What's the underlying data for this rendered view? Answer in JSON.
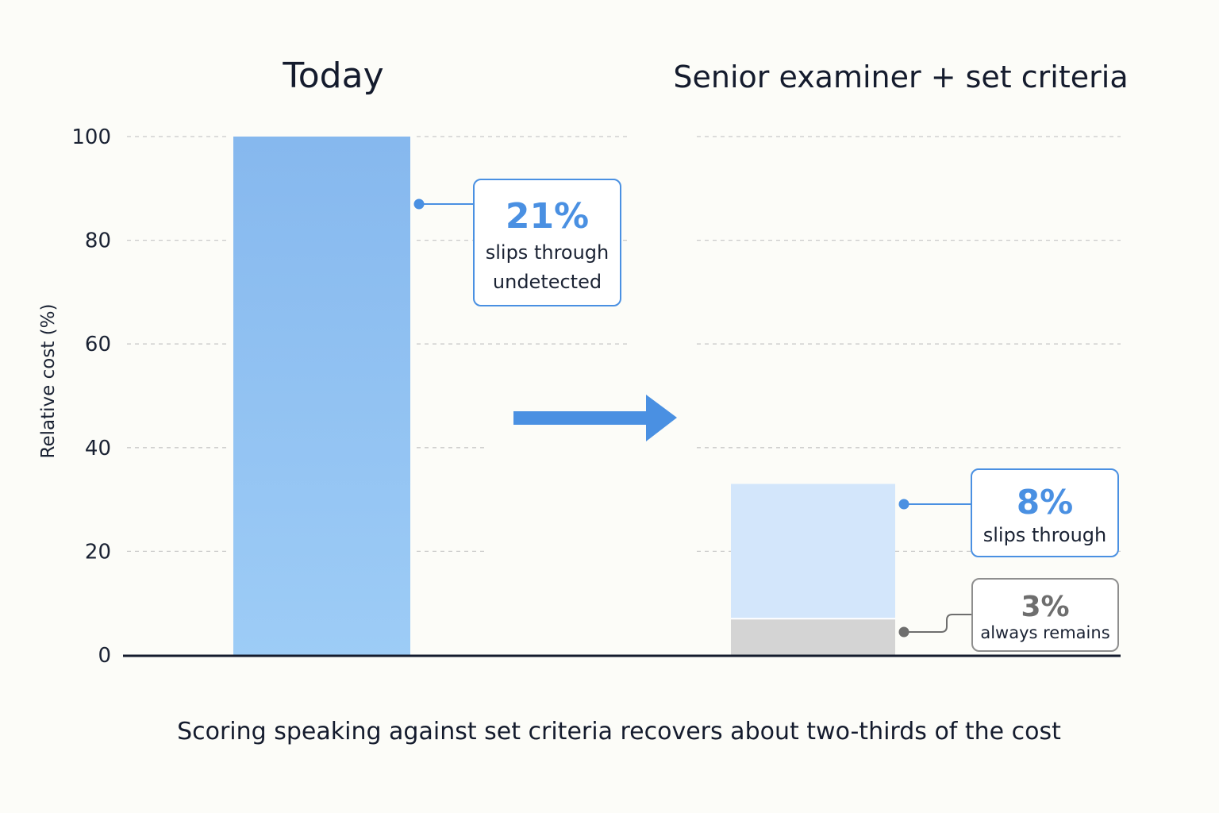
{
  "chart_data": {
    "type": "bar",
    "ylabel": "Relative cost (%)",
    "ylim": [
      0,
      100
    ],
    "yticks": [
      0,
      20,
      40,
      60,
      80,
      100
    ],
    "grid": true,
    "caption": "Scoring speaking against set criteria recovers about two-thirds of the cost",
    "panels": [
      {
        "title": "Today",
        "segments": [
          {
            "value": 100
          }
        ]
      },
      {
        "title": "Senior examiner + set criteria",
        "segments": [
          {
            "value": 7
          },
          {
            "value": 26
          }
        ]
      }
    ],
    "callouts": [
      {
        "pct": "21%",
        "lines": [
          "slips through",
          "undetected"
        ],
        "color": "#4a90e2",
        "anchor_value": 87
      },
      {
        "pct": "8%",
        "lines": [
          "slips through"
        ],
        "color": "#4a90e2",
        "anchor_value": 29
      },
      {
        "pct": "3%",
        "lines": [
          "always remains"
        ],
        "color": "#6e6e6e",
        "anchor_value": 4
      }
    ],
    "colors": {
      "today_bar_top": "#86b8ee",
      "today_bar_bottom": "#9dccf6",
      "slips_segment": "#d3e6fb",
      "remains_segment": "#d4d4d4",
      "arrow": "#4a90e2",
      "blue_outline": "#4a90e2",
      "gray_outline": "#8e8e8e",
      "axis": "#141b2d"
    }
  }
}
